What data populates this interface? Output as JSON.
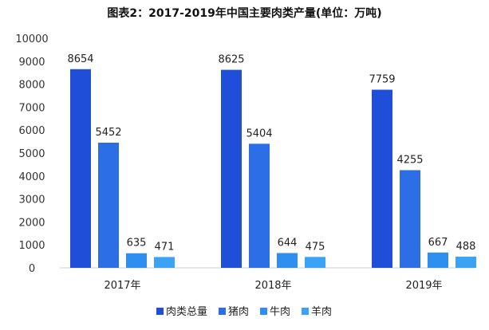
{
  "chart_data": {
    "type": "bar",
    "title": "图表2：2017-2019年中国主要肉类产量(单位：万吨)",
    "categories": [
      "2017年",
      "2018年",
      "2019年"
    ],
    "series": [
      {
        "name": "肉类总量",
        "color": "#1f4fd9",
        "values": [
          8654,
          8625,
          7759
        ]
      },
      {
        "name": "猪肉",
        "color": "#2b6ee6",
        "values": [
          5452,
          5404,
          4255
        ]
      },
      {
        "name": "牛肉",
        "color": "#2f8ff0",
        "values": [
          635,
          644,
          667
        ]
      },
      {
        "name": "羊肉",
        "color": "#3aa3f5",
        "values": [
          471,
          475,
          488
        ]
      }
    ],
    "ylim": [
      0,
      10000
    ],
    "yticks": [
      0,
      1000,
      2000,
      3000,
      4000,
      5000,
      6000,
      7000,
      8000,
      9000,
      10000
    ],
    "grid": false,
    "legend_position": "bottom"
  }
}
